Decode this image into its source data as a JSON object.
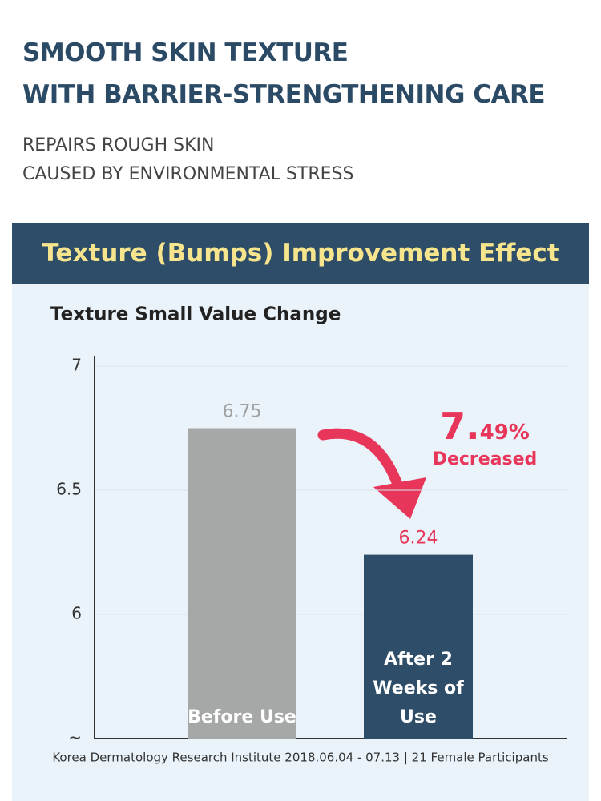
{
  "header": {
    "title": [
      "SMOOTH SKIN TEXTURE",
      "WITH BARRIER-STRENGTHENING CARE"
    ],
    "subtitle": [
      "REPAIRS ROUGH SKIN",
      "CAUSED BY ENVIRONMENTAL STRESS"
    ]
  },
  "banner": "Texture (Bumps) Improvement Effect",
  "chart_data": {
    "type": "bar",
    "title": "Texture Small Value Change",
    "categories": [
      "Before Use",
      "After 2 Weeks of Use"
    ],
    "values": [
      6.75,
      6.24
    ],
    "colors": [
      "#a5a8a7",
      "#2d4d68"
    ],
    "ylim": [
      5.5,
      7
    ],
    "yticks": [
      {
        "value": 5.5,
        "label": "~"
      },
      6,
      6.5,
      7
    ],
    "grid": true,
    "annotation": {
      "value": "7.49%",
      "text": "Decreased"
    },
    "source": "Korea Dermatology Research Institute 2018.06.04 - 07.13 | 21 Female Participants"
  }
}
